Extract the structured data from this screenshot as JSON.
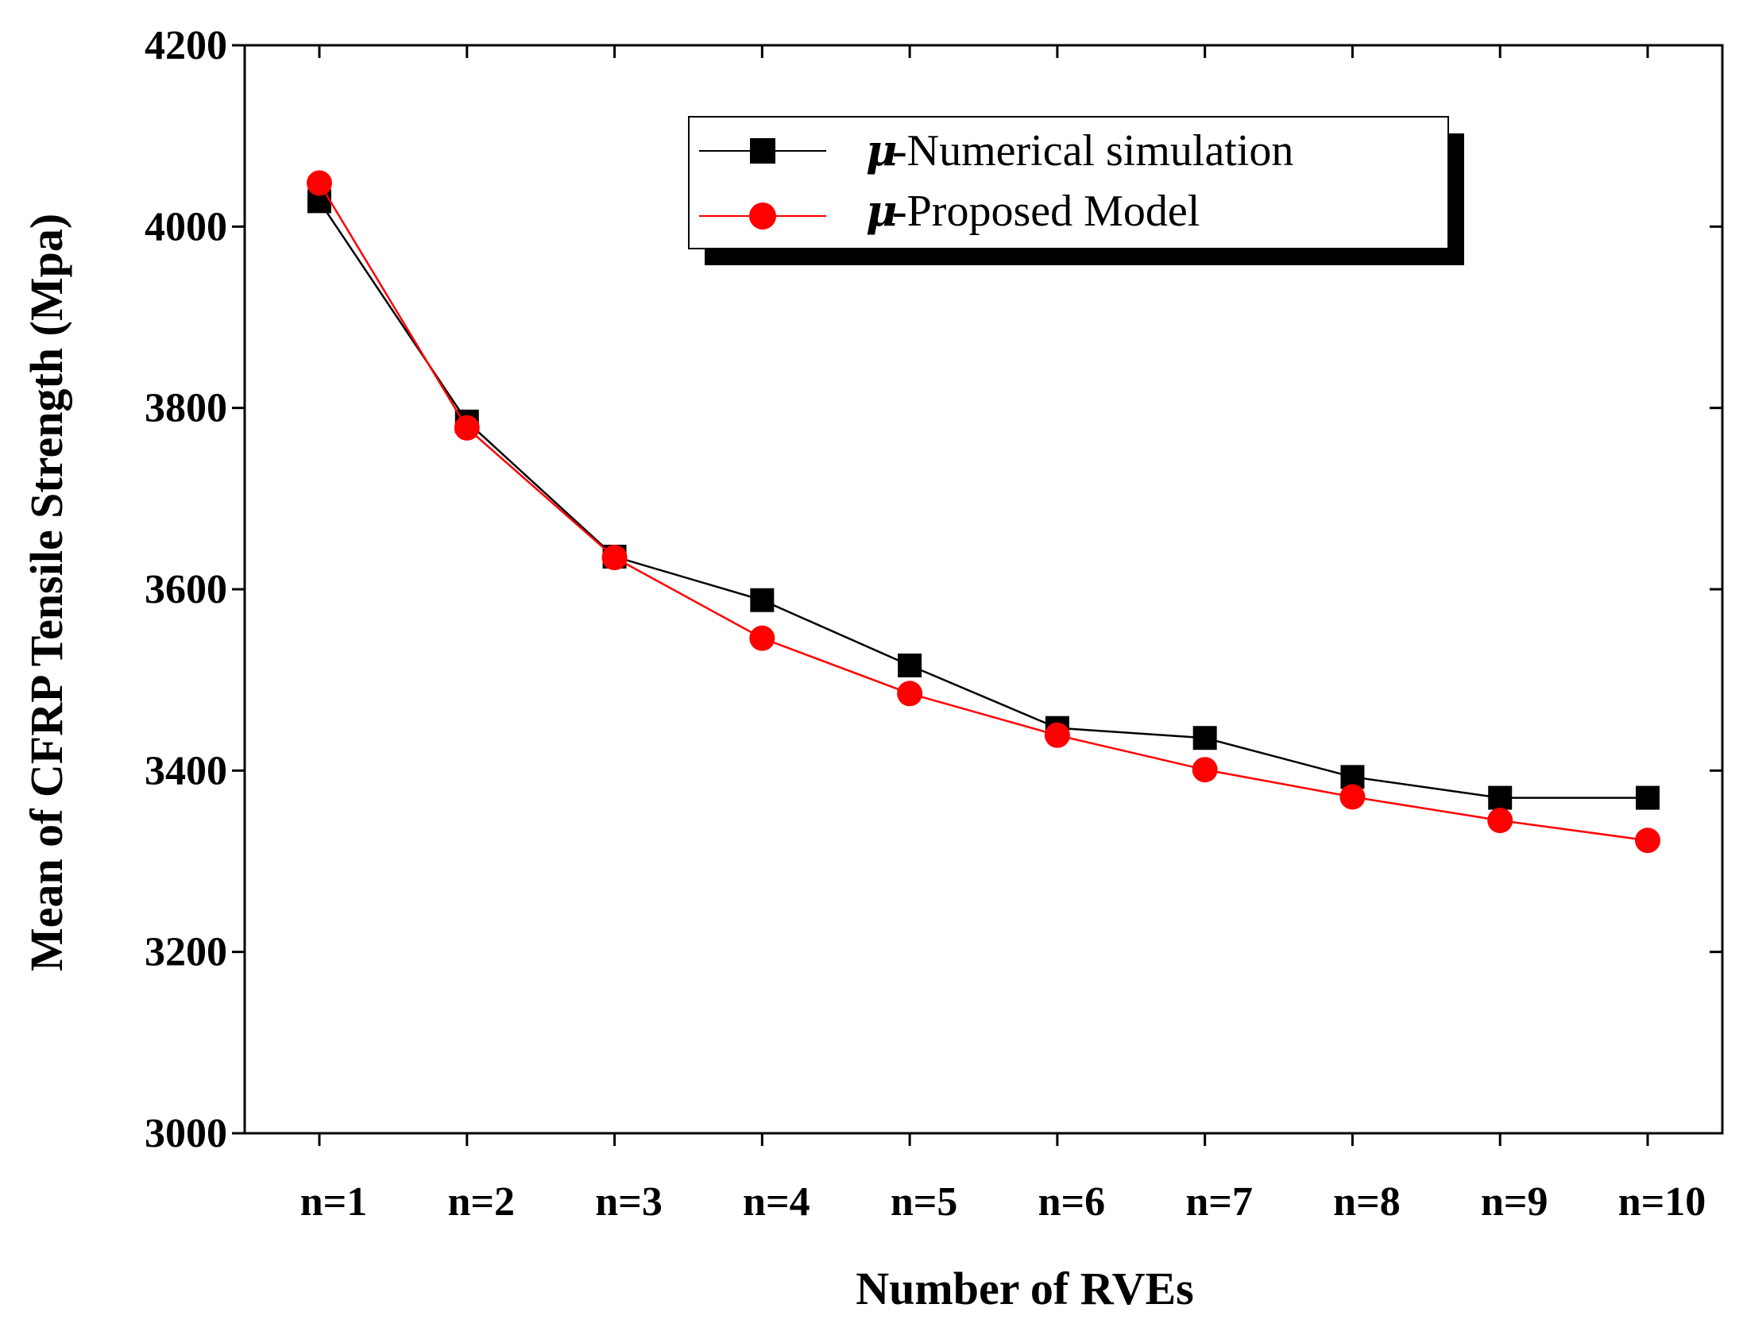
{
  "chart_data": {
    "type": "line",
    "title": "",
    "xlabel": "Number of RVEs",
    "ylabel": "Mean of CFRP Tensile Strength (Mpa)",
    "categories": [
      "n=1",
      "n=2",
      "n=3",
      "n=4",
      "n=5",
      "n=6",
      "n=7",
      "n=8",
      "n=9",
      "n=10"
    ],
    "ylim": [
      3000,
      4200
    ],
    "yticks": [
      3000,
      3200,
      3400,
      3600,
      3800,
      4000,
      4200
    ],
    "legend_position": "top-right",
    "series": [
      {
        "name": "Numerical simulation",
        "legend_prefix": "μ",
        "legend_label": "-Numerical simulation",
        "marker": "square",
        "line_color": "#000000",
        "marker_color": "#000000",
        "values": [
          4028,
          3785,
          3636,
          3588,
          3516,
          3447,
          3436,
          3393,
          3370,
          3370
        ]
      },
      {
        "name": "Proposed Model",
        "legend_prefix": "μ",
        "legend_label": "-Proposed Model",
        "marker": "circle",
        "line_color": "#ff0000",
        "marker_color": "#ff0000",
        "values": [
          4048,
          3778,
          3635,
          3546,
          3485,
          3439,
          3401,
          3371,
          3345,
          3323
        ]
      }
    ]
  }
}
